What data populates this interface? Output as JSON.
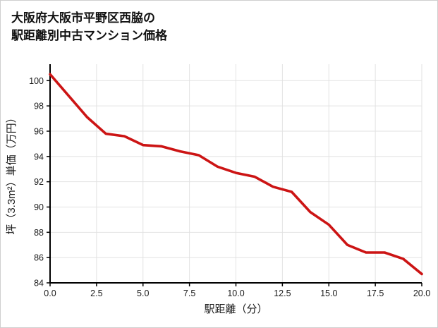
{
  "chart_data": {
    "type": "line",
    "title_lines": [
      "大阪府大阪市平野区西脇の",
      "駅距離別中古マンション価格"
    ],
    "xlabel": "駅距離（分）",
    "ylabel": "坪（3.3m²）単価（万円）",
    "x": [
      0,
      1,
      2,
      3,
      4,
      5,
      6,
      7,
      8,
      9,
      10,
      11,
      12,
      13,
      14,
      15,
      16,
      17,
      18,
      19,
      20
    ],
    "y": [
      100.5,
      98.8,
      97.1,
      95.8,
      95.6,
      94.9,
      94.8,
      94.4,
      94.1,
      93.2,
      92.7,
      92.4,
      91.6,
      91.2,
      89.6,
      88.6,
      87.0,
      86.4,
      86.4,
      85.9,
      84.7
    ],
    "xlim": [
      0,
      20
    ],
    "ylim": [
      84,
      101.3
    ],
    "xticks": [
      0,
      2.5,
      5,
      7.5,
      10,
      12.5,
      15,
      17.5,
      20
    ],
    "xtick_labels": [
      "0.0",
      "2.5",
      "5.0",
      "7.5",
      "10.0",
      "12.5",
      "15.0",
      "17.5",
      "20.0"
    ],
    "yticks": [
      84,
      86,
      88,
      90,
      92,
      94,
      96,
      98,
      100
    ],
    "ytick_labels": [
      "84",
      "86",
      "88",
      "90",
      "92",
      "94",
      "96",
      "98",
      "100"
    ],
    "grid": true,
    "legend": "none",
    "line_color": "#cc1414",
    "grid_color": "#e2e2e2",
    "axis_color": "#000000",
    "background": "#ffffff"
  }
}
